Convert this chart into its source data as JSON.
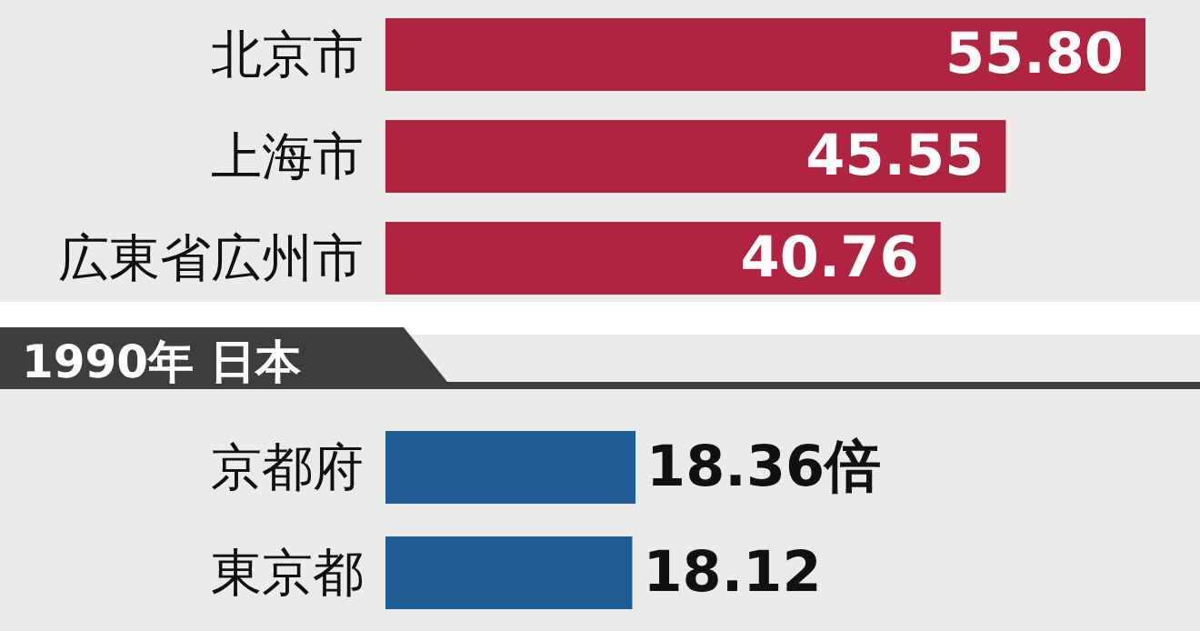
{
  "chart_data": [
    {
      "type": "bar",
      "orientation": "horizontal",
      "categories": [
        "北京市",
        "上海市",
        "広東省広州市"
      ],
      "values": [
        55.8,
        45.55,
        40.76
      ],
      "color": "#b0243f",
      "value_labels": [
        "55.80",
        "45.55",
        "40.76"
      ]
    },
    {
      "type": "bar",
      "orientation": "horizontal",
      "title": "1990年 日本",
      "categories": [
        "京都府",
        "東京都"
      ],
      "values": [
        18.36,
        18.12
      ],
      "color": "#1f5b94",
      "value_labels": [
        "18.36倍",
        "18.12"
      ]
    }
  ]
}
